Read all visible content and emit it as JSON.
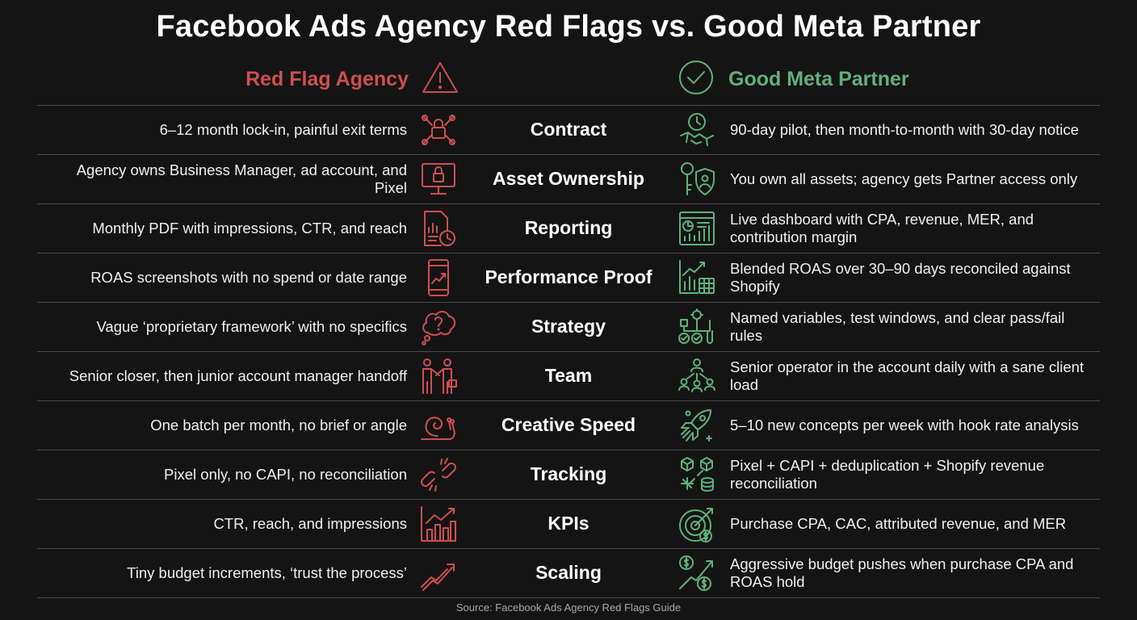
{
  "title": "Facebook Ads Agency Red Flags vs. Good Meta Partner",
  "headers": {
    "left": "Red Flag Agency",
    "right": "Good Meta Partner",
    "left_icon": "warning-triangle-icon",
    "right_icon": "checkmark-circle-icon"
  },
  "colors": {
    "red": "#cf4f4f",
    "green": "#5fb17a",
    "background": "#141414"
  },
  "rows": [
    {
      "category": "Contract",
      "red": "6–12 month lock-in, painful exit terms",
      "good": "90-day pilot, then month-to-month with 30-day notice",
      "red_icon": "chain-lock-icon",
      "good_icon": "handshake-clock-icon"
    },
    {
      "category": "Asset Ownership",
      "red": "Agency owns Business Manager, ad account, and Pixel",
      "good": "You own all assets; agency gets Partner access only",
      "red_icon": "monitor-lock-icon",
      "good_icon": "key-shield-icon"
    },
    {
      "category": "Reporting",
      "red": "Monthly PDF with impressions, CTR, and reach",
      "good": "Live dashboard with CPA, revenue, MER, and contribution margin",
      "red_icon": "document-clock-icon",
      "good_icon": "dashboard-chart-icon"
    },
    {
      "category": "Performance Proof",
      "red": "ROAS screenshots with no spend or date range",
      "good": "Blended ROAS over 30–90 days reconciled against Shopify",
      "red_icon": "phone-chart-icon",
      "good_icon": "chart-calendar-icon"
    },
    {
      "category": "Strategy",
      "red": "Vague ‘proprietary framework’ with no specifics",
      "good": "Named variables, test windows, and clear pass/fail rules",
      "red_icon": "thought-question-icon",
      "good_icon": "test-flow-icon"
    },
    {
      "category": "Team",
      "red": "Senior closer, then junior account manager handoff",
      "good": "Senior operator in the account daily with a sane client load",
      "red_icon": "handoff-people-icon",
      "good_icon": "team-network-icon"
    },
    {
      "category": "Creative Speed",
      "red": "One batch per month, no brief or angle",
      "good": "5–10 new concepts per week with hook rate analysis",
      "red_icon": "snail-icon",
      "good_icon": "rocket-icon"
    },
    {
      "category": "Tracking",
      "red": "Pixel only, no CAPI, no reconciliation",
      "good": "Pixel + CAPI + deduplication + Shopify revenue reconciliation",
      "red_icon": "broken-link-icon",
      "good_icon": "data-sync-icon"
    },
    {
      "category": "KPIs",
      "red": "CTR, reach, and impressions",
      "good": "Purchase CPA, CAC, attributed revenue, and MER",
      "red_icon": "bar-chart-icon",
      "good_icon": "target-dollar-icon"
    },
    {
      "category": "Scaling",
      "red": "Tiny budget increments, ‘trust the process’",
      "good": "Aggressive budget pushes when purchase CPA and ROAS hold",
      "red_icon": "small-trend-icon",
      "good_icon": "dollar-growth-icon"
    }
  ],
  "source": "Source: Facebook Ads Agency Red Flags Guide"
}
